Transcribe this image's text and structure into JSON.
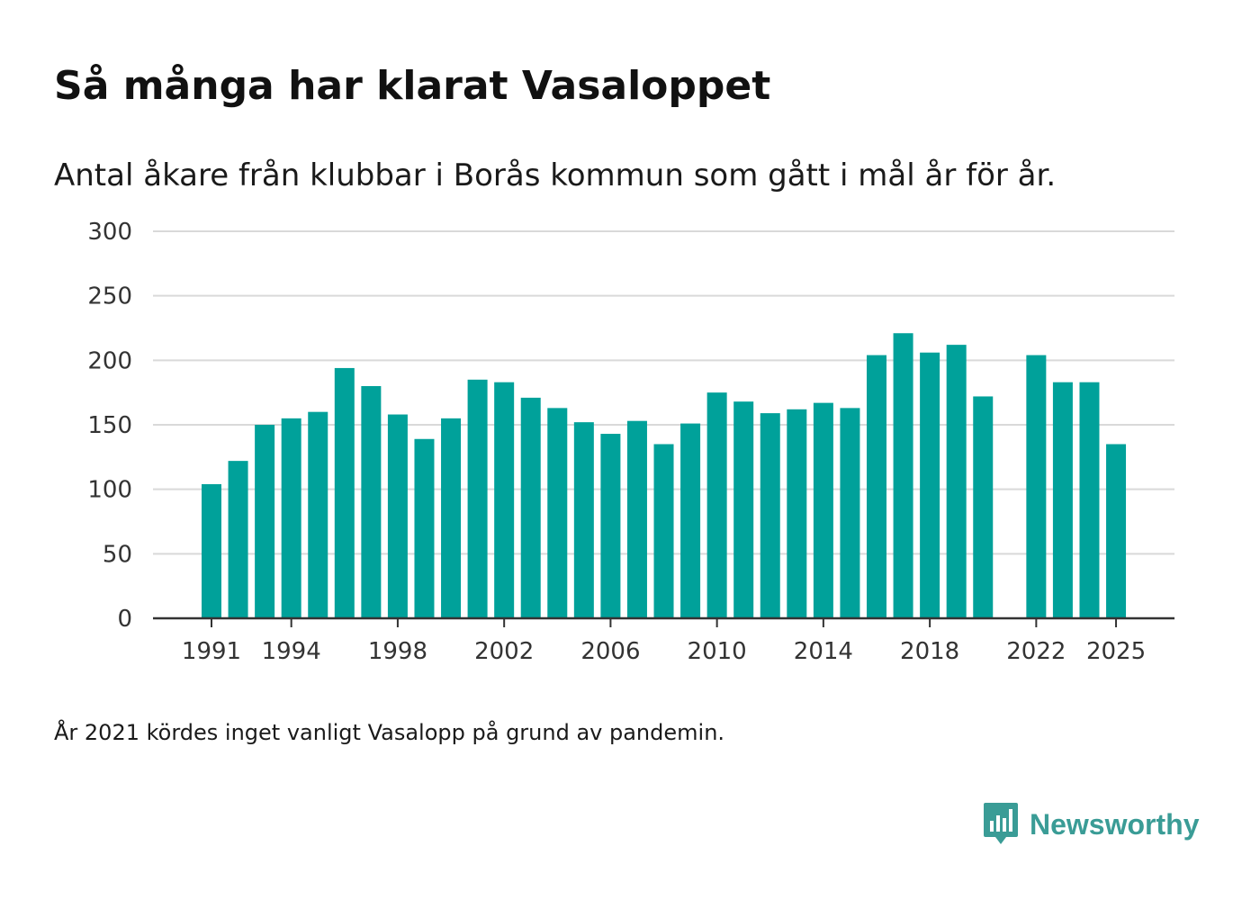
{
  "chart_data": {
    "type": "bar",
    "title": "Så många har klarat Vasaloppet",
    "subtitle": "Antal åkare från klubbar i Borås kommun som gått i mål år för år.",
    "xlabel": "",
    "ylabel": "",
    "ylim": [
      0,
      300
    ],
    "y_ticks": [
      "0",
      "50",
      "100",
      "150",
      "200",
      "250",
      "300"
    ],
    "x_ticks": [
      "1991",
      "1994",
      "1998",
      "2002",
      "2006",
      "2010",
      "2014",
      "2018",
      "2022",
      "2025"
    ],
    "grid": true,
    "bar_color": "#00a19a",
    "categories": [
      "1991",
      "1992",
      "1993",
      "1994",
      "1995",
      "1996",
      "1997",
      "1998",
      "1999",
      "2000",
      "2001",
      "2002",
      "2003",
      "2004",
      "2005",
      "2006",
      "2007",
      "2008",
      "2009",
      "2010",
      "2011",
      "2012",
      "2013",
      "2014",
      "2015",
      "2016",
      "2017",
      "2018",
      "2019",
      "2020",
      "2021",
      "2022",
      "2023",
      "2024",
      "2025"
    ],
    "values": [
      104,
      122,
      150,
      155,
      160,
      194,
      180,
      158,
      139,
      155,
      185,
      183,
      171,
      163,
      152,
      143,
      153,
      135,
      151,
      175,
      168,
      159,
      162,
      167,
      163,
      204,
      221,
      206,
      212,
      172,
      null,
      204,
      183,
      183,
      135
    ]
  },
  "footnote": "År 2021 kördes inget vanligt Vasalopp på grund av pandemin.",
  "brand": {
    "name": "Newsworthy",
    "icon": "bar-chart-speech-bubble-icon",
    "color": "#3a9c96"
  }
}
